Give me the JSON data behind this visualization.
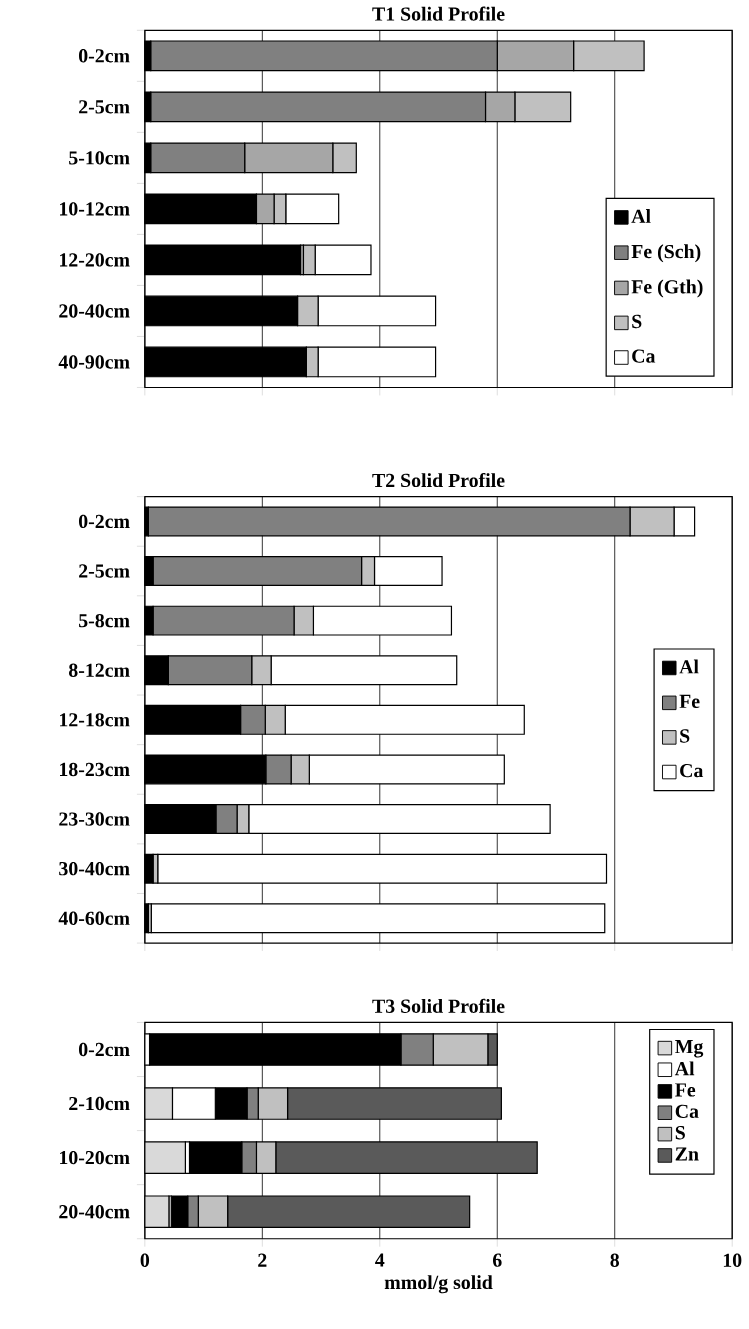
{
  "chart_data": [
    {
      "type": "bar",
      "orientation": "horizontal",
      "stacked": true,
      "title": "T1 Solid Profile",
      "categories": [
        "0-2cm",
        "2-5cm",
        "5-10cm",
        "10-12cm",
        "12-20cm",
        "20-40cm",
        "40-90cm"
      ],
      "series": [
        {
          "name": "Al",
          "color": "#000000",
          "values": [
            0.1,
            0.1,
            0.1,
            1.9,
            2.65,
            2.6,
            2.75
          ]
        },
        {
          "name": "Fe (Sch)",
          "color": "#808080",
          "values": [
            5.9,
            5.7,
            1.6,
            0,
            0,
            0,
            0
          ]
        },
        {
          "name": "Fe (Gth)",
          "color": "#a6a6a6",
          "values": [
            1.3,
            0.5,
            1.5,
            0.3,
            0.05,
            0,
            0
          ]
        },
        {
          "name": "S",
          "color": "#c0c0c0",
          "values": [
            1.2,
            0.95,
            0.4,
            0.2,
            0.2,
            0.35,
            0.2
          ]
        },
        {
          "name": "Ca",
          "color": "#ffffff",
          "values": [
            0,
            0,
            0,
            0.9,
            0.95,
            2.0,
            2.0
          ]
        }
      ],
      "xlim": [
        0,
        10
      ],
      "xticks": [
        0,
        2,
        4,
        6,
        8,
        10
      ],
      "tick_labels": "y",
      "grid": "x",
      "legend": "bottom right"
    },
    {
      "type": "bar",
      "orientation": "horizontal",
      "stacked": true,
      "title": "T2 Solid Profile",
      "categories": [
        "0-2cm",
        "2-5cm",
        "5-8cm",
        "8-12cm",
        "12-18cm",
        "18-23cm",
        "23-30cm",
        "30-40cm",
        "40-60cm"
      ],
      "series": [
        {
          "name": "Al",
          "color": "#000000",
          "values": [
            0.06,
            0.14,
            0.14,
            0.4,
            1.63,
            2.06,
            1.21,
            0.14,
            0.06
          ]
        },
        {
          "name": "Fe",
          "color": "#808080",
          "values": [
            8.2,
            3.55,
            2.4,
            1.42,
            0.42,
            0.43,
            0.36,
            0,
            0
          ]
        },
        {
          "name": "S",
          "color": "#c0c0c0",
          "values": [
            0.75,
            0.22,
            0.33,
            0.33,
            0.34,
            0.31,
            0.2,
            0.08,
            0.05
          ]
        },
        {
          "name": "Ca",
          "color": "#ffffff",
          "values": [
            0.35,
            1.15,
            2.35,
            3.16,
            4.07,
            3.32,
            5.13,
            7.64,
            7.72
          ]
        }
      ],
      "xlim": [
        0,
        10
      ],
      "xticks": [
        0,
        2,
        4,
        6,
        8,
        10
      ],
      "tick_labels": "y",
      "grid": "x",
      "legend": "right"
    },
    {
      "type": "bar",
      "orientation": "horizontal",
      "stacked": true,
      "title": "T3 Solid Profile",
      "xlabel": "mmol/g solid",
      "categories": [
        "0-2cm",
        "2-10cm",
        "10-20cm",
        "20-40cm"
      ],
      "series": [
        {
          "name": "Mg",
          "color": "#d9d9d9",
          "values": [
            0,
            0.47,
            0.69,
            0.41
          ]
        },
        {
          "name": "Al",
          "color": "#ffffff",
          "values": [
            0.08,
            0.73,
            0.07,
            0.04
          ]
        },
        {
          "name": "Fe",
          "color": "#000000",
          "values": [
            4.28,
            0.54,
            0.89,
            0.28
          ]
        },
        {
          "name": "Ca",
          "color": "#808080",
          "values": [
            0.55,
            0.19,
            0.25,
            0.18
          ]
        },
        {
          "name": "S",
          "color": "#c0c0c0",
          "values": [
            0.93,
            0.5,
            0.33,
            0.5
          ]
        },
        {
          "name": "Zn",
          "color": "#5a5a5a",
          "values": [
            0.16,
            3.64,
            4.45,
            4.12
          ]
        }
      ],
      "xlim": [
        0,
        10
      ],
      "xticks": [
        0,
        2,
        4,
        6,
        8,
        10
      ],
      "grid": "x",
      "legend": "top right"
    }
  ]
}
